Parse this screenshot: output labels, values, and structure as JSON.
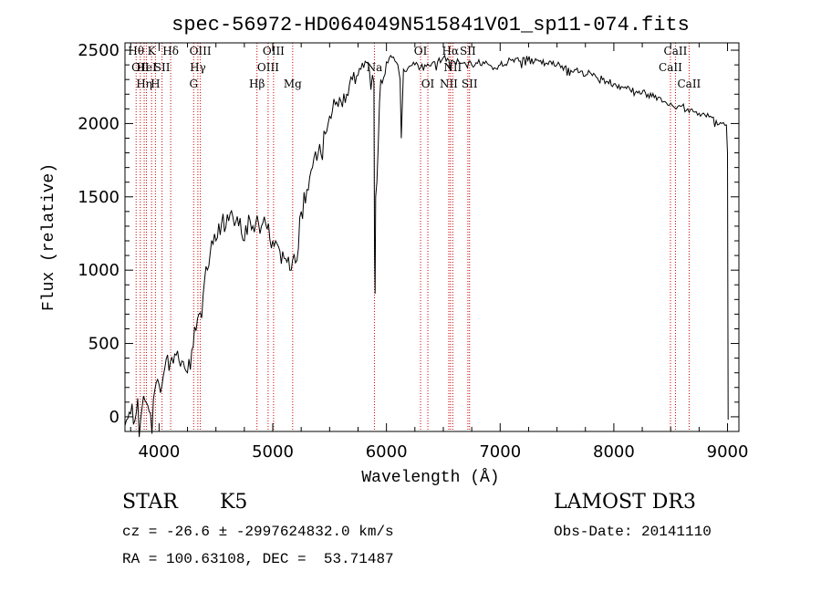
{
  "chart_data": {
    "type": "line",
    "title": "spec-56972-HD064049N515841V01_sp11-074.fits",
    "xlabel": "Wavelength (Å)",
    "ylabel": "Flux (relative)",
    "xlim": [
      3700,
      9100
    ],
    "ylim": [
      -100,
      2550
    ],
    "x_ticks": [
      4000,
      5000,
      6000,
      7000,
      8000,
      9000
    ],
    "y_ticks": [
      0,
      500,
      1000,
      1500,
      2000,
      2500
    ],
    "grid": false,
    "line_color": "#000000",
    "marker_color": "#cc0000",
    "series": [
      {
        "x": [
          3700,
          3750,
          3800,
          3850,
          3900,
          3950,
          4000,
          4050,
          4100,
          4150,
          4200,
          4250,
          4300,
          4350,
          4400,
          4450,
          4500,
          4550,
          4600,
          4650,
          4700,
          4750,
          4800,
          4850,
          4900,
          4950,
          5000,
          5050,
          5100,
          5150,
          5200,
          5250,
          5300,
          5350,
          5400,
          5450,
          5500,
          5550,
          5600,
          5650,
          5700,
          5750,
          5800,
          5850,
          5890,
          5895,
          5900,
          5905,
          5950,
          6000,
          6050,
          6100,
          6120,
          6130,
          6150,
          6200,
          6250,
          6300,
          6350,
          6400,
          6450,
          6500,
          6550,
          6560,
          6570,
          6600,
          6650,
          6700,
          6750,
          6800,
          6850,
          6900,
          6950,
          7000,
          7100,
          7200,
          7300,
          7400,
          7500,
          7600,
          7700,
          7800,
          7900,
          8000,
          8100,
          8200,
          8300,
          8400,
          8450,
          8500,
          8550,
          8600,
          8650,
          8700,
          8750,
          8800,
          8850,
          8900,
          8950,
          8990,
          9000,
          9005
        ],
        "y": [
          -60,
          20,
          30,
          60,
          80,
          120,
          220,
          330,
          380,
          420,
          380,
          300,
          480,
          700,
          930,
          1120,
          1200,
          1320,
          1380,
          1360,
          1300,
          1200,
          1340,
          1320,
          1300,
          1280,
          1200,
          1160,
          1080,
          1000,
          1050,
          1400,
          1550,
          1700,
          1800,
          1950,
          2050,
          2130,
          2150,
          2200,
          2300,
          2330,
          2380,
          2360,
          2280,
          1100,
          840,
          1500,
          2300,
          2420,
          2450,
          2400,
          2300,
          1900,
          2370,
          2390,
          2400,
          2380,
          2390,
          2410,
          2420,
          2450,
          2430,
          2360,
          2430,
          2420,
          2410,
          2400,
          2400,
          2410,
          2420,
          2400,
          2380,
          2400,
          2430,
          2450,
          2420,
          2410,
          2400,
          2380,
          2350,
          2340,
          2300,
          2270,
          2250,
          2220,
          2200,
          2180,
          2150,
          2140,
          2100,
          2120,
          2100,
          2080,
          2070,
          2060,
          2050,
          2020,
          2000,
          1990,
          1800,
          -20
        ]
      }
    ],
    "line_markers": [
      {
        "wavelength": 3798,
        "label": "Hθ",
        "row": 0
      },
      {
        "wavelength": 3835,
        "label": "OII",
        "row": 1
      },
      {
        "wavelength": 3869,
        "label": "Hη",
        "row": 2
      },
      {
        "wavelength": 3889,
        "label": "HeI",
        "row": 1
      },
      {
        "wavelength": 3934,
        "label": "K",
        "row": 0
      },
      {
        "wavelength": 3968,
        "label": "H",
        "row": 2
      },
      {
        "wavelength": 4026,
        "label": "SII",
        "row": 1
      },
      {
        "wavelength": 4102,
        "label": "Hδ",
        "row": 0
      },
      {
        "wavelength": 4304,
        "label": "G",
        "row": 2
      },
      {
        "wavelength": 4341,
        "label": "Hγ",
        "row": 1
      },
      {
        "wavelength": 4363,
        "label": "OIII",
        "row": 0
      },
      {
        "wavelength": 4861,
        "label": "Hβ",
        "row": 2
      },
      {
        "wavelength": 4959,
        "label": "OIII",
        "row": 1
      },
      {
        "wavelength": 5007,
        "label": "OIII",
        "row": 0
      },
      {
        "wavelength": 5175,
        "label": "Mg",
        "row": 2
      },
      {
        "wavelength": 5894,
        "label": "Na",
        "row": 1
      },
      {
        "wavelength": 6300,
        "label": "OI",
        "row": 0
      },
      {
        "wavelength": 6364,
        "label": "OI",
        "row": 2
      },
      {
        "wavelength": 6548,
        "label": "NII",
        "row": 2
      },
      {
        "wavelength": 6563,
        "label": "Hα",
        "row": 0
      },
      {
        "wavelength": 6583,
        "label": "NII",
        "row": 1
      },
      {
        "wavelength": 6716,
        "label": "SII",
        "row": 0
      },
      {
        "wavelength": 6731,
        "label": "SII",
        "row": 2
      },
      {
        "wavelength": 8498,
        "label": "CaII",
        "row": 1
      },
      {
        "wavelength": 8542,
        "label": "CaII",
        "row": 0
      },
      {
        "wavelength": 8662,
        "label": "CaII",
        "row": 2
      }
    ]
  },
  "info": {
    "object_class": "STAR",
    "subclass": "K5",
    "survey": "LAMOST DR3",
    "redshift_line": "cz = -26.6 ± -2997624832.0 km/s",
    "obs_date_line": "Obs-Date: 20141110",
    "coords_line": "RA = 100.63108, DEC =  53.71487"
  }
}
